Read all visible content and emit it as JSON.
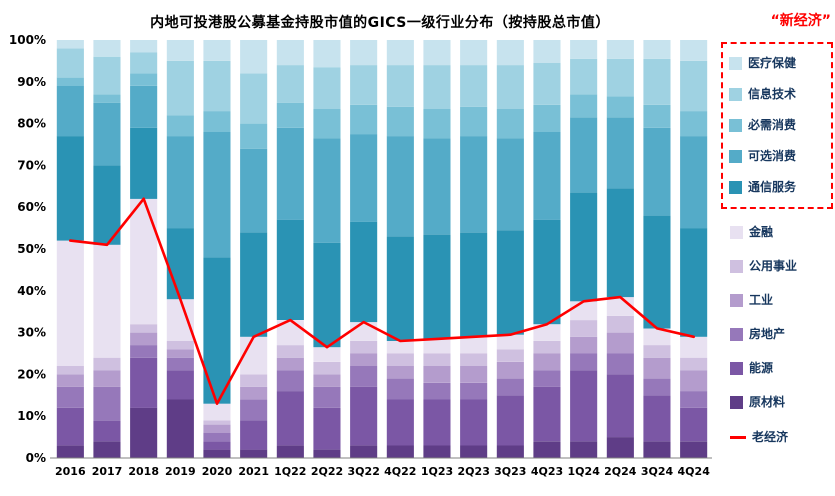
{
  "title": "内地可投港股公募基金持股市值的GICS一级行业分布（按持股总市值）",
  "new_economy_label": "“新经济”",
  "legend": {
    "new_economy": [
      {
        "label": "医疗保健",
        "color": "#c7e3ee"
      },
      {
        "label": "信息技术",
        "color": "#9fd2e2"
      },
      {
        "label": "必需消费",
        "color": "#79c0d6"
      },
      {
        "label": "可选消费",
        "color": "#54abc8"
      },
      {
        "label": "通信服务",
        "color": "#2a93b4"
      }
    ],
    "old_economy": [
      {
        "label": "金融",
        "color": "#e8e1f1"
      },
      {
        "label": "公用事业",
        "color": "#cfc0e0"
      },
      {
        "label": "工业",
        "color": "#b49ccd"
      },
      {
        "label": "房地产",
        "color": "#9678ba"
      },
      {
        "label": "能源",
        "color": "#7b57a5"
      },
      {
        "label": "原材料",
        "color": "#5f3d87"
      }
    ],
    "line_item": {
      "label": "老经济",
      "color": "#ff0000"
    }
  },
  "chart_data": {
    "type": "bar",
    "subtype": "stacked-100-with-line",
    "title": "内地可投港股公募基金持股市值的GICS一级行业分布（按持股总市值）",
    "xlabel": "",
    "ylabel": "",
    "ylim": [
      0,
      100
    ],
    "ytick_step": 10,
    "grid": false,
    "legend_position": "right",
    "categories": [
      "2016",
      "2017",
      "2018",
      "2019",
      "2020",
      "2021",
      "1Q22",
      "2Q22",
      "3Q22",
      "4Q22",
      "1Q23",
      "2Q23",
      "3Q23",
      "4Q23",
      "1Q24",
      "2Q24",
      "3Q24",
      "4Q24"
    ],
    "series": [
      {
        "key": "materials",
        "name": "原材料",
        "color": "#5f3d87",
        "values": [
          3,
          4,
          12,
          14,
          2,
          2,
          3,
          2,
          3,
          3,
          3,
          3,
          3,
          4,
          4,
          5,
          4,
          4
        ]
      },
      {
        "key": "energy",
        "name": "能源",
        "color": "#7b57a5",
        "values": [
          9,
          5,
          12,
          7,
          2,
          7,
          13,
          10,
          14,
          11,
          11,
          11,
          12,
          13,
          17,
          15,
          11,
          8
        ]
      },
      {
        "key": "real-estate",
        "name": "房地产",
        "color": "#9678ba",
        "values": [
          5,
          8,
          3,
          3,
          2,
          5,
          5,
          5,
          5,
          5,
          4,
          4,
          4,
          4,
          4,
          5,
          4,
          4
        ]
      },
      {
        "key": "industrials",
        "name": "工业",
        "color": "#b49ccd",
        "values": [
          3,
          4,
          3,
          2,
          2,
          3,
          3,
          3,
          3,
          3,
          4,
          4,
          4,
          4,
          4,
          5,
          5,
          5
        ]
      },
      {
        "key": "utilities",
        "name": "公用事业",
        "color": "#cfc0e0",
        "values": [
          2,
          3,
          2,
          2,
          1,
          3,
          3,
          3,
          3,
          3,
          3,
          3,
          3,
          3,
          4,
          4,
          3,
          3
        ]
      },
      {
        "key": "financials",
        "name": "金融",
        "color": "#e8e1f1",
        "values": [
          30,
          27,
          30,
          10,
          4,
          9,
          6,
          3.5,
          4.5,
          3,
          3.5,
          4,
          3.5,
          4,
          4.5,
          4.5,
          4,
          5
        ]
      },
      {
        "key": "comm-services",
        "name": "通信服务",
        "color": "#2a93b4",
        "values": [
          25,
          19,
          17,
          17,
          35,
          25,
          24,
          25,
          24,
          25,
          25,
          25,
          25,
          25,
          26,
          26,
          27,
          26
        ]
      },
      {
        "key": "cons-disc",
        "name": "可选消费",
        "color": "#54abc8",
        "values": [
          12,
          15,
          10,
          22,
          30,
          20,
          22,
          25,
          21,
          24,
          23,
          23,
          22,
          21,
          18,
          17,
          21,
          22
        ]
      },
      {
        "key": "cons-staples",
        "name": "必需消费",
        "color": "#79c0d6",
        "values": [
          2,
          2,
          3,
          5,
          5,
          6,
          6,
          7,
          7,
          7,
          7,
          7,
          7,
          6.5,
          5.5,
          5,
          5.5,
          6
        ]
      },
      {
        "key": "info-tech",
        "name": "信息技术",
        "color": "#9fd2e2",
        "values": [
          7,
          9,
          5,
          13,
          12,
          12,
          9,
          10,
          9.5,
          10,
          10.5,
          10,
          10.5,
          10,
          8.5,
          9,
          11,
          12
        ]
      },
      {
        "key": "healthcare",
        "name": "医疗保健",
        "color": "#c7e3ee",
        "values": [
          2,
          4,
          3,
          5,
          5,
          8,
          6,
          6.5,
          6,
          6,
          6,
          6,
          6,
          5.5,
          4.5,
          4.5,
          4.5,
          5
        ]
      }
    ],
    "line": {
      "key": "old-economy",
      "name": "老经济",
      "color": "#ff0000",
      "values": [
        52,
        51,
        62,
        38,
        13,
        29,
        33,
        26.5,
        32.5,
        28,
        28.5,
        29,
        29.5,
        32,
        37.5,
        38.5,
        31,
        29
      ]
    }
  }
}
